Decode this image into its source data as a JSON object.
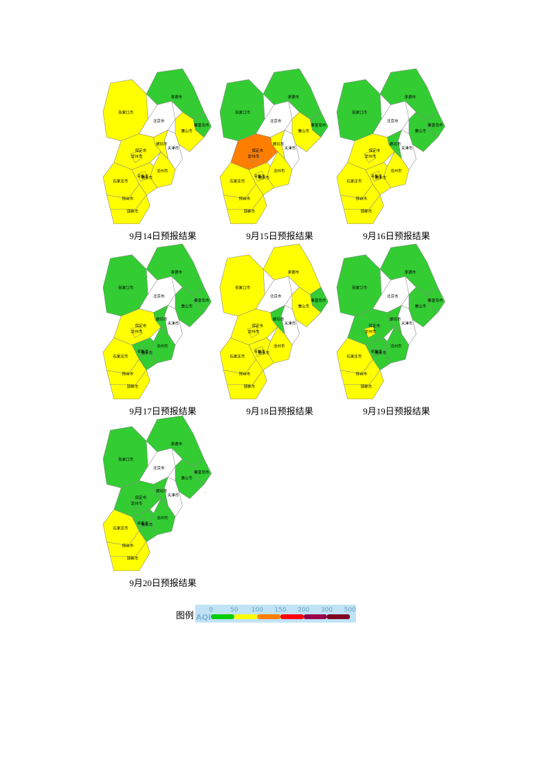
{
  "cities": [
    "张家口市",
    "承德市",
    "北京市",
    "秦皇岛市",
    "唐山市",
    "廊坊市",
    "天津市",
    "保定市",
    "沧州市",
    "石家庄市",
    "衡水市",
    "邢台市",
    "邯郸市",
    "定州市",
    "辛集市"
  ],
  "maps": [
    {
      "caption": "9月14日预报结果",
      "colors": [
        "#ffff00",
        "#33cc33",
        "#ffffff",
        "#33cc33",
        "#ffff00",
        "#ffff00",
        "#ffffff",
        "#ffff00",
        "#ffff00",
        "#ffff00",
        "#ffff00",
        "#ffff00",
        "#ffff00",
        "#ffff00",
        "#ffff00"
      ]
    },
    {
      "caption": "9月15日预报结果",
      "colors": [
        "#33cc33",
        "#33cc33",
        "#ffffff",
        "#33cc33",
        "#ffff00",
        "#ffff00",
        "#ffffff",
        "#ff7e00",
        "#ffff00",
        "#ffff00",
        "#ffff00",
        "#ffff00",
        "#ffff00",
        "#ff7e00",
        "#ffff00"
      ]
    },
    {
      "caption": "9月16日预报结果",
      "colors": [
        "#33cc33",
        "#33cc33",
        "#ffffff",
        "#33cc33",
        "#33cc33",
        "#33cc33",
        "#ffffff",
        "#ffff00",
        "#ffff00",
        "#ffff00",
        "#ffff00",
        "#ffff00",
        "#ffff00",
        "#ffff00",
        "#ffff00"
      ]
    },
    {
      "caption": "9月17日预报结果",
      "colors": [
        "#33cc33",
        "#33cc33",
        "#ffffff",
        "#33cc33",
        "#33cc33",
        "#33cc33",
        "#ffffff",
        "#ffff00",
        "#33cc33",
        "#ffff00",
        "#33cc33",
        "#ffff00",
        "#ffff00",
        "#ffff00",
        "#33cc33"
      ]
    },
    {
      "caption": "9月18日预报结果",
      "colors": [
        "#ffff00",
        "#ffff00",
        "#ffffff",
        "#33cc33",
        "#ffff00",
        "#33cc33",
        "#ffffff",
        "#ffff00",
        "#ffff00",
        "#ffff00",
        "#ffff00",
        "#ffff00",
        "#ffff00",
        "#ffff00",
        "#ffff00"
      ]
    },
    {
      "caption": "9月19日预报结果",
      "colors": [
        "#33cc33",
        "#33cc33",
        "#ffffff",
        "#33cc33",
        "#33cc33",
        "#33cc33",
        "#ffffff",
        "#33cc33",
        "#33cc33",
        "#ffff00",
        "#33cc33",
        "#ffff00",
        "#ffff00",
        "#ffff00",
        "#33cc33"
      ]
    },
    {
      "caption": "9月20日预报结果",
      "colors": [
        "#33cc33",
        "#33cc33",
        "#ffffff",
        "#33cc33",
        "#33cc33",
        "#33cc33",
        "#ffffff",
        "#33cc33",
        "#33cc33",
        "#ffff00",
        "#33cc33",
        "#ffff00",
        "#ffff00",
        "#33cc33",
        "#33cc33"
      ]
    }
  ],
  "legend": {
    "title": "图例",
    "label": "AQI",
    "ticks": [
      0,
      50,
      100,
      150,
      200,
      300,
      500
    ],
    "colors": [
      "#00cc00",
      "#ffff00",
      "#ff7e00",
      "#ff0000",
      "#99004c",
      "#7e0023"
    ]
  }
}
